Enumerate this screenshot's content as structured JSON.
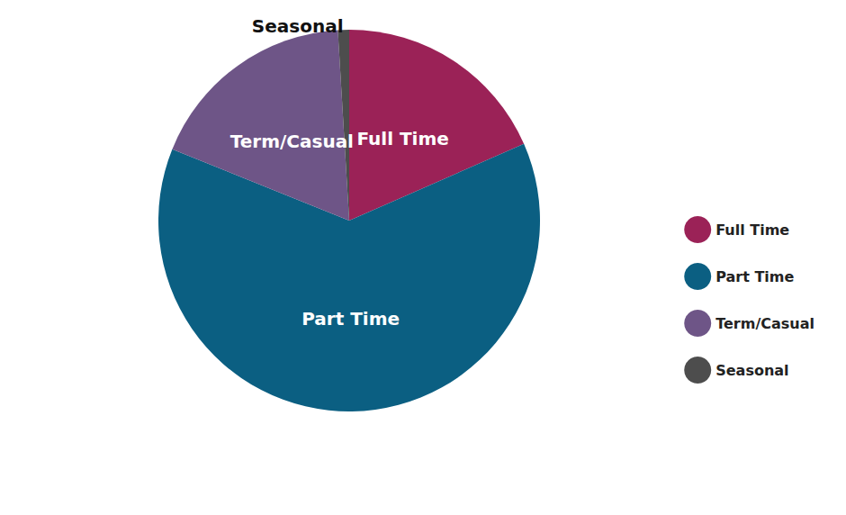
{
  "chart_data": {
    "type": "pie",
    "categories": [
      "Full Time",
      "Part Time",
      "Term/Casual",
      "Seasonal"
    ],
    "values": [
      310,
      1055,
      302,
      16
    ],
    "colors": [
      "#9b2257",
      "#0b5f82",
      "#6e5587",
      "#4d4d4d"
    ],
    "legend": "right",
    "data_labels": true
  }
}
